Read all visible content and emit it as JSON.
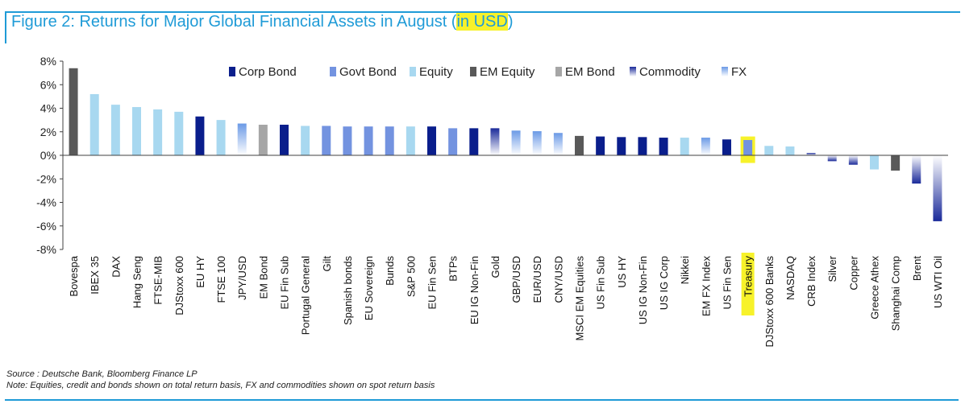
{
  "title": {
    "before": "Figure 2: Returns for Major Global Financial Assets in August (",
    "highlight": "in USD",
    "after": ")"
  },
  "footnotes": {
    "source": "Source : Deutsche Bank, Bloomberg Finance LP",
    "note": "Note: Equities, credit and bonds shown on total return basis, FX and commodities shown on spot return basis"
  },
  "colors": {
    "corp_bond": "#0a1e8c",
    "govt_bond": "#7393e0",
    "equity": "#a8d8f0",
    "em_equity": "#595959",
    "em_bond": "#a6a6a6",
    "commodity": "#1a2a9a",
    "fx": "#6b9ae6",
    "highlight": "#f7f22a",
    "title": "#1f9bd7"
  },
  "chart_data": {
    "type": "bar",
    "title": "Figure 2: Returns for Major Global Financial Assets in August (in USD)",
    "xlabel": "",
    "ylabel": "",
    "ylim": [
      -8,
      8
    ],
    "yticks": [
      8,
      6,
      4,
      2,
      0,
      -2,
      -4,
      -6,
      -8
    ],
    "ytick_labels": [
      "8%",
      "6%",
      "4%",
      "2%",
      "0%",
      "-2%",
      "-4%",
      "-6%",
      "-8%"
    ],
    "legend": [
      {
        "key": "corp_bond",
        "label": "Corp Bond"
      },
      {
        "key": "govt_bond",
        "label": "Govt Bond"
      },
      {
        "key": "equity",
        "label": "Equity"
      },
      {
        "key": "em_equity",
        "label": "EM Equity"
      },
      {
        "key": "em_bond",
        "label": "EM Bond"
      },
      {
        "key": "commodity",
        "label": "Commodity"
      },
      {
        "key": "fx",
        "label": "FX"
      }
    ],
    "categories": [
      "Bovespa",
      "IBEX 35",
      "DAX",
      "Hang Seng",
      "FTSE-MIB",
      "DJStoxx 600",
      "EU HY",
      "FTSE 100",
      "JPY/USD",
      "EM Bond",
      "EU Fin Sub",
      "Portugal General",
      "Gilt",
      "Spanish bonds",
      "EU Sovereign",
      "Bunds",
      "S&P 500",
      "EU Fin Sen",
      "BTPs",
      "EU IG Non-Fin",
      "Gold",
      "GBP/USD",
      "EUR/USD",
      "CNY/USD",
      "MSCI EM Equities",
      "US Fin Sub",
      "US HY",
      "US IG Non-Fin",
      "US IG Corp",
      "Nikkei",
      "EM FX Index",
      "US Fin Sen",
      "Treasury",
      "DJStoxx 600 Banks",
      "NASDAQ",
      "CRB Index",
      "Silver",
      "Copper",
      "Greece Athex",
      "Shanghai Comp",
      "Brent",
      "US WTI Oil"
    ],
    "values": [
      7.4,
      5.2,
      4.3,
      4.1,
      3.9,
      3.7,
      3.3,
      3.0,
      2.7,
      2.6,
      2.6,
      2.5,
      2.5,
      2.45,
      2.45,
      2.45,
      2.45,
      2.45,
      2.3,
      2.3,
      2.3,
      2.1,
      2.05,
      1.9,
      1.65,
      1.6,
      1.55,
      1.55,
      1.5,
      1.5,
      1.5,
      1.35,
      1.3,
      0.8,
      0.75,
      0.2,
      -0.5,
      -0.8,
      -1.2,
      -1.3,
      -2.4,
      -5.6
    ],
    "asset_class": [
      "em_equity",
      "equity",
      "equity",
      "equity",
      "equity",
      "equity",
      "corp_bond",
      "equity",
      "fx",
      "em_bond",
      "corp_bond",
      "equity",
      "govt_bond",
      "govt_bond",
      "govt_bond",
      "govt_bond",
      "equity",
      "corp_bond",
      "govt_bond",
      "corp_bond",
      "commodity",
      "fx",
      "fx",
      "fx",
      "em_equity",
      "corp_bond",
      "corp_bond",
      "corp_bond",
      "corp_bond",
      "equity",
      "fx",
      "corp_bond",
      "govt_bond",
      "equity",
      "equity",
      "commodity",
      "commodity",
      "commodity",
      "equity",
      "em_equity",
      "commodity",
      "commodity"
    ],
    "highlighted": [
      "Treasury"
    ]
  }
}
